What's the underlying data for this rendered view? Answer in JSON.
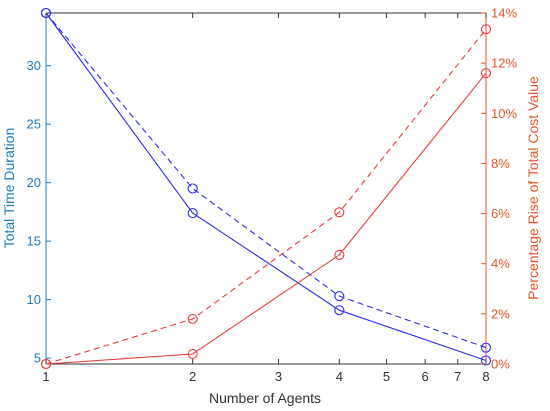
{
  "chart_data": {
    "type": "line",
    "xlabel": "Number of Agents",
    "ylabel_left": "Total Time Duration",
    "ylabel_right": "Percentage Rise of Total Cost Value",
    "x_scale": "log2",
    "xlim": [
      1,
      8
    ],
    "ylim_left": [
      4.5,
      34.5
    ],
    "ylim_right": [
      0,
      14
    ],
    "x_ticks": [
      1,
      2,
      3,
      4,
      5,
      6,
      7,
      8
    ],
    "x_tick_labels": [
      "1",
      "2",
      "3",
      "4",
      "5",
      "6",
      "7",
      "8"
    ],
    "y_left_ticks": [
      5,
      10,
      15,
      20,
      25,
      30
    ],
    "y_left_tick_labels": [
      "5",
      "10",
      "15",
      "20",
      "25",
      "30"
    ],
    "y_right_ticks": [
      0,
      2,
      4,
      6,
      8,
      10,
      12,
      14
    ],
    "y_right_tick_labels": [
      "0%",
      "2%",
      "4%",
      "6%",
      "8%",
      "10%",
      "12%",
      "14%"
    ],
    "series": [
      {
        "axis": "left",
        "style": "solid",
        "color": "#2e2eef",
        "x": [
          1,
          2,
          4,
          8
        ],
        "y": [
          34.5,
          17.4,
          9.1,
          4.8
        ]
      },
      {
        "axis": "left",
        "style": "dashed",
        "color": "#2e2eef",
        "x": [
          1,
          2,
          4,
          8
        ],
        "y": [
          34.5,
          19.5,
          10.3,
          5.9
        ]
      },
      {
        "axis": "right",
        "style": "solid",
        "color": "#ef3b3b",
        "x": [
          1,
          2,
          4,
          8
        ],
        "y": [
          0.0,
          0.4,
          4.35,
          11.6
        ]
      },
      {
        "axis": "right",
        "style": "dashed",
        "color": "#ef3b3b",
        "x": [
          1,
          2,
          4,
          8
        ],
        "y": [
          0.0,
          1.8,
          6.05,
          13.35
        ]
      }
    ],
    "colors": {
      "left_axis": "#1f7bbf",
      "right_axis": "#e8542a",
      "x_axis": "#333333"
    }
  }
}
